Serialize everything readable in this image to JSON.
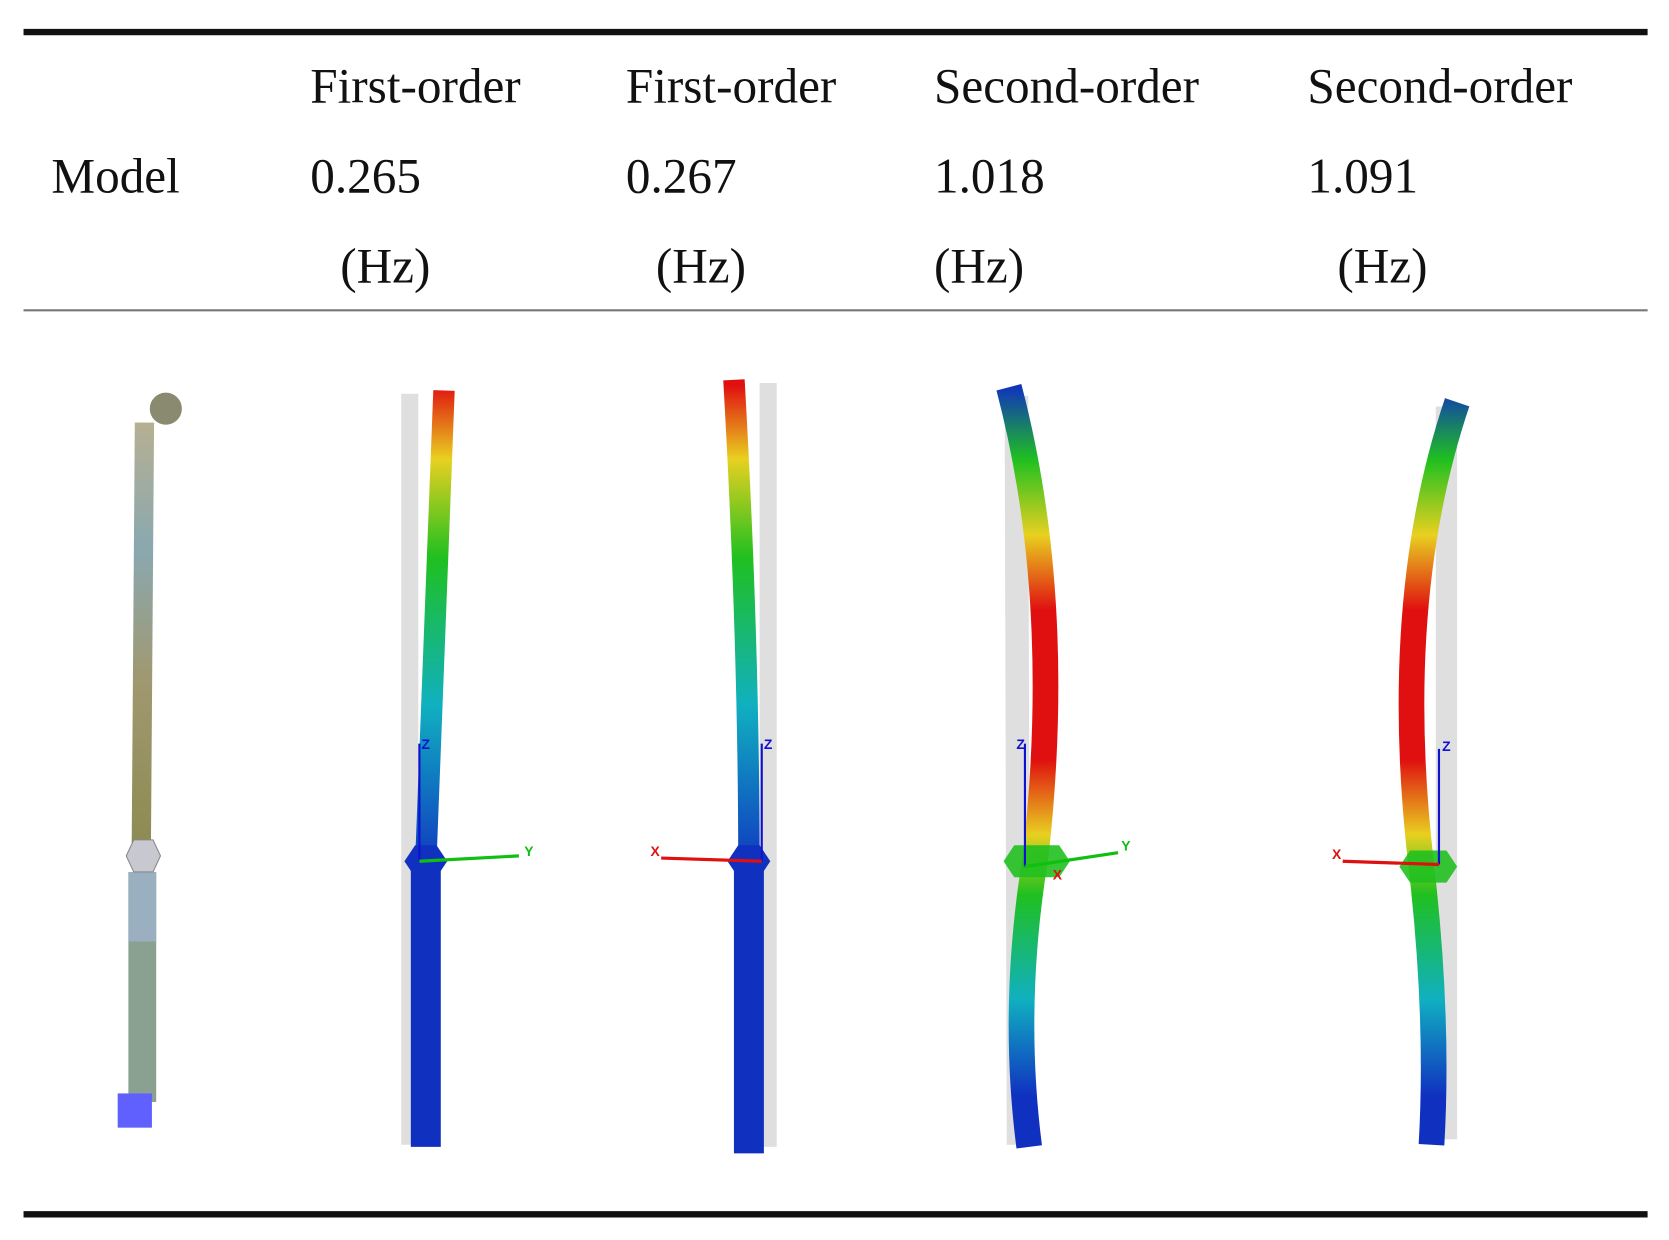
{
  "table": {
    "header": {
      "label": "Model",
      "columns": [
        {
          "mode": "First-order",
          "frequency": 0.265,
          "unit": "(Hz)"
        },
        {
          "mode": "First-order",
          "frequency": 0.267,
          "unit": "(Hz)"
        },
        {
          "mode": "Second-order",
          "frequency": 1.018,
          "unit": "(Hz)"
        },
        {
          "mode": "Second-order",
          "frequency": 1.091,
          "unit": "(Hz)"
        }
      ]
    }
  },
  "figures": [
    {
      "axes": [
        "Z",
        "Y"
      ]
    },
    {
      "axes": [
        "X",
        "Z"
      ]
    },
    {
      "axes": [
        "Z",
        "Y",
        "X"
      ]
    },
    {
      "axes": [
        "X",
        "Z"
      ]
    }
  ]
}
